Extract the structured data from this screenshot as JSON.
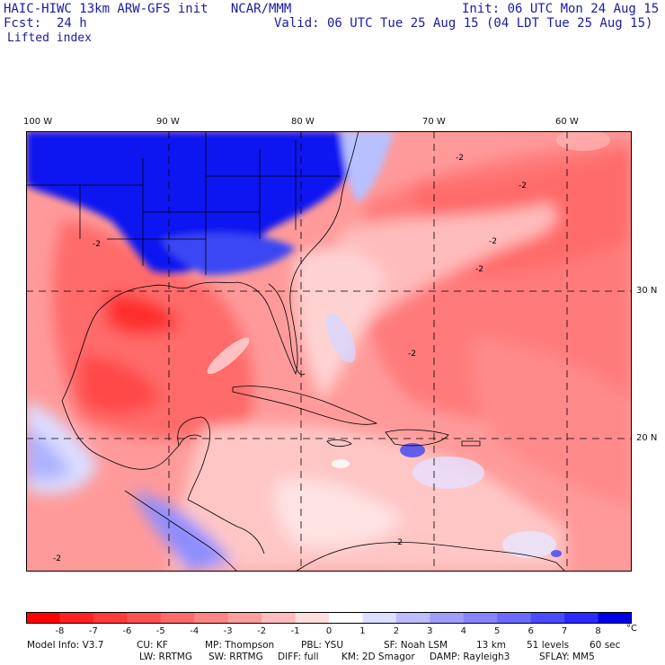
{
  "header": {
    "title": "HAIC-HIWC 13km ARW-GFS init   NCAR/MMM",
    "init": "Init: 06 UTC Mon 24 Aug 15",
    "fcst": "Fcst:  24 h",
    "valid": "Valid: 06 UTC Tue 25 Aug 15 (04 LDT Tue 25 Aug 15)",
    "field": "Lifted index"
  },
  "map": {
    "lon_labels": [
      "100 W",
      "90 W",
      "80 W",
      "70 W",
      "60 W"
    ],
    "lat_labels": [
      "30 N",
      "20 N"
    ],
    "contour_label": "-2"
  },
  "colorbar": {
    "labels": [
      "-8",
      "-7",
      "-6",
      "-5",
      "-4",
      "-3",
      "-2",
      "-1",
      "0",
      "1",
      "2",
      "3",
      "4",
      "5",
      "6",
      "7",
      "8"
    ],
    "unit": "°C",
    "colors": [
      "#ff0000",
      "#ff2222",
      "#ff3a3a",
      "#ff5252",
      "#ff6a6a",
      "#ff8484",
      "#ff9e9e",
      "#ffbcbc",
      "#ffdede",
      "#ffffff",
      "#dedeff",
      "#bcbcff",
      "#9e9eff",
      "#8484ff",
      "#6a6aff",
      "#4a4aff",
      "#2a2aff",
      "#0000e8"
    ]
  },
  "model_info": {
    "line1": [
      "Model Info: V3.7",
      "CU: KF",
      "MP: Thompson",
      "PBL: YSU",
      "SF: Noah LSM",
      "13 km",
      "51 levels",
      "60 sec"
    ],
    "line2": [
      "LW: RRTMG",
      "SW: RRTMG",
      "DIFF: full",
      "KM: 2D Smagor",
      "DAMP: Rayleigh3",
      "SFLAY: MM5"
    ]
  }
}
